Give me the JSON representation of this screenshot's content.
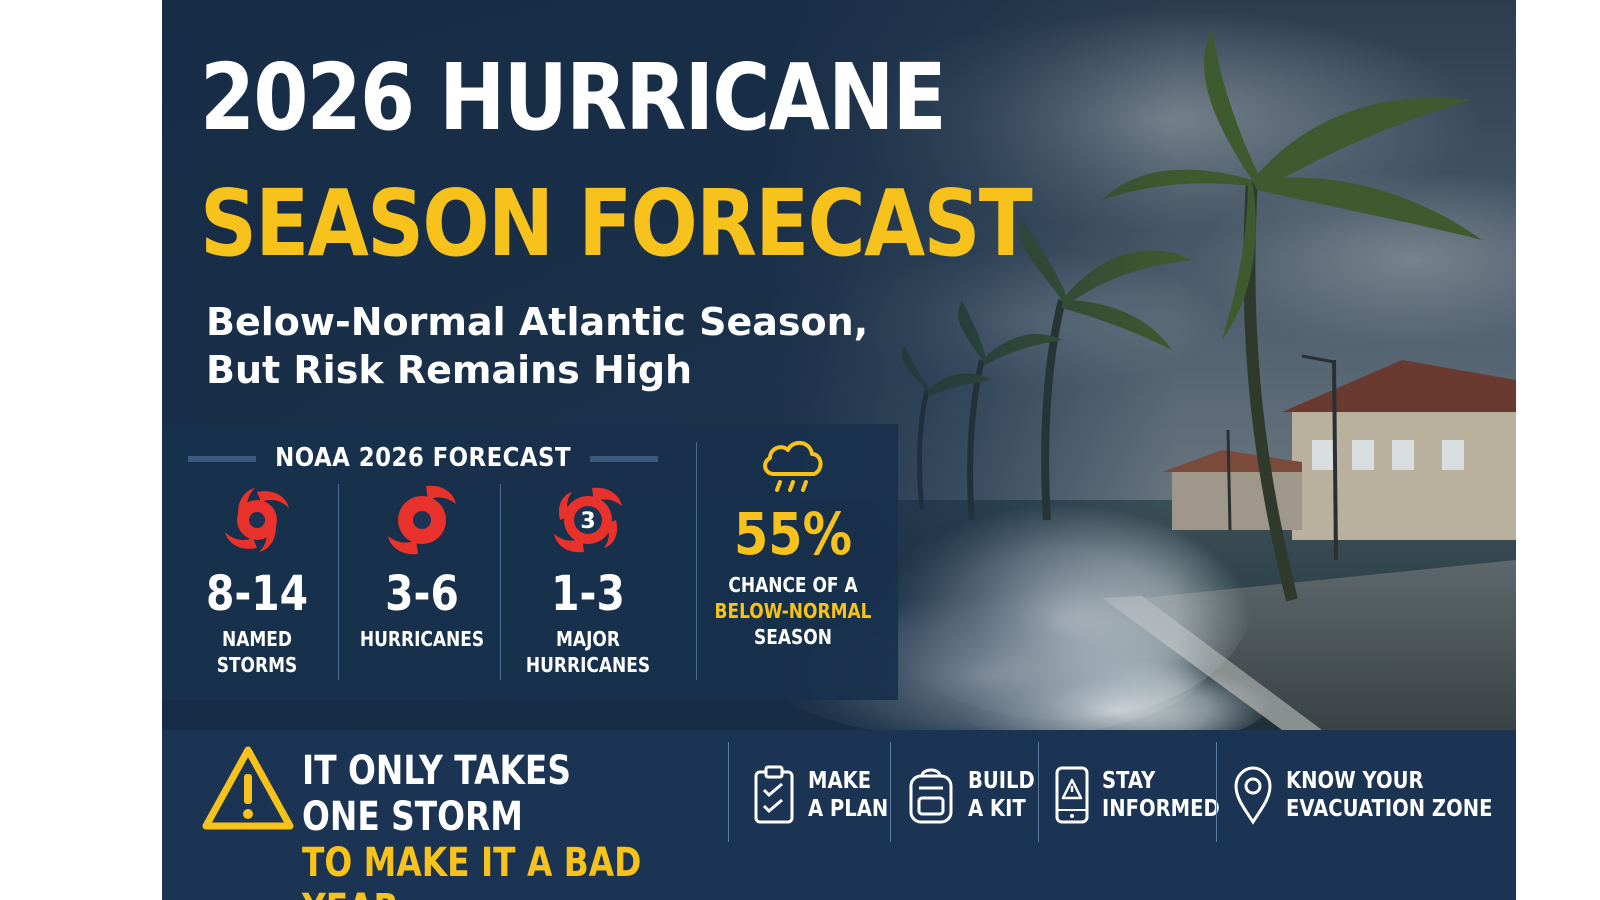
{
  "title": {
    "line1": "2026 HURRICANE",
    "line2": "SEASON FORECAST"
  },
  "subtitle": {
    "line1": "Below-Normal Atlantic Season,",
    "line2": "But Risk Remains High"
  },
  "forecast": {
    "header": "NOAA 2026 FORECAST",
    "stats": [
      {
        "value": "8-14",
        "label_line1": "NAMED",
        "label_line2": "STORMS",
        "icon": "tropical-storm-icon"
      },
      {
        "value": "3-6",
        "label_line1": "HURRICANES",
        "label_line2": "",
        "icon": "hurricane-icon"
      },
      {
        "value": "1-3",
        "label_line1": "MAJOR",
        "label_line2": "HURRICANES",
        "icon": "major-hurricane-icon",
        "icon_text": "3"
      }
    ],
    "chance": {
      "value": "55%",
      "label_line1": "CHANCE OF A",
      "label_line2": "BELOW-NORMAL",
      "label_line3": "SEASON",
      "icon": "rain-cloud-icon"
    }
  },
  "banner": {
    "slogan_line1": "IT ONLY TAKES ONE STORM",
    "slogan_line2": "TO MAKE IT A BAD YEAR.",
    "actions": [
      {
        "line1": "MAKE",
        "line2": "A PLAN",
        "icon": "clipboard-check-icon"
      },
      {
        "line1": "BUILD",
        "line2": "A KIT",
        "icon": "backpack-icon"
      },
      {
        "line1": "STAY",
        "line2": "INFORMED",
        "icon": "phone-alert-icon"
      },
      {
        "line1": "KNOW YOUR",
        "line2": "EVACUATION ZONE",
        "icon": "map-pin-icon"
      }
    ]
  },
  "colors": {
    "accent_yellow": "#f6c21b",
    "navy": "#1c3453",
    "storm_red": "#e8322b"
  }
}
